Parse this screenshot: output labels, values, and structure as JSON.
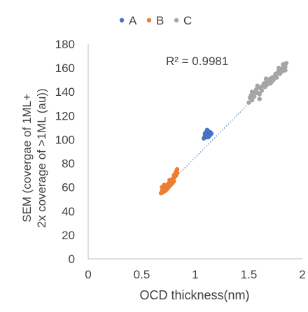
{
  "chart_data": {
    "type": "scatter",
    "title": "",
    "xlabel": "OCD thickness(nm)",
    "ylabel_line1": "SEM (covergae of 1ML+",
    "ylabel_line2": "2x coverage of >1ML (au))",
    "xlim": [
      0,
      2
    ],
    "ylim": [
      0,
      180
    ],
    "x_ticks": [
      0,
      0.5,
      1,
      1.5,
      2
    ],
    "x_tick_labels": [
      "0",
      "0.5",
      "1",
      "1.5",
      "2"
    ],
    "y_ticks": [
      0,
      20,
      40,
      60,
      80,
      100,
      120,
      140,
      160,
      180
    ],
    "y_tick_labels": [
      "0",
      "20",
      "40",
      "60",
      "80",
      "100",
      "120",
      "140",
      "160",
      "180"
    ],
    "grid": false,
    "legend_position": "top-center",
    "annotation": "R² = 0.9981",
    "trendline": {
      "style": "dotted",
      "color": "#4472c4",
      "from": [
        0.68,
        56
      ],
      "to": [
        1.85,
        162
      ]
    },
    "series": [
      {
        "name": "A",
        "color": "#4472c4",
        "points": [
          [
            1.08,
            101
          ],
          [
            1.09,
            103
          ],
          [
            1.1,
            104
          ],
          [
            1.1,
            106
          ],
          [
            1.11,
            102
          ],
          [
            1.12,
            105
          ],
          [
            1.12,
            107
          ],
          [
            1.13,
            104
          ],
          [
            1.14,
            106
          ],
          [
            1.15,
            105
          ],
          [
            1.11,
            108
          ],
          [
            1.13,
            103
          ],
          [
            1.09,
            105
          ],
          [
            1.14,
            104
          ],
          [
            1.12,
            102
          ]
        ]
      },
      {
        "name": "B",
        "color": "#ed7d31",
        "points": [
          [
            0.68,
            55
          ],
          [
            0.69,
            57
          ],
          [
            0.7,
            56
          ],
          [
            0.7,
            59
          ],
          [
            0.71,
            58
          ],
          [
            0.72,
            61
          ],
          [
            0.72,
            57
          ],
          [
            0.73,
            60
          ],
          [
            0.74,
            62
          ],
          [
            0.74,
            59
          ],
          [
            0.75,
            63
          ],
          [
            0.76,
            61
          ],
          [
            0.76,
            64
          ],
          [
            0.77,
            65
          ],
          [
            0.77,
            62
          ],
          [
            0.78,
            66
          ],
          [
            0.79,
            64
          ],
          [
            0.79,
            67
          ],
          [
            0.8,
            68
          ],
          [
            0.8,
            65
          ],
          [
            0.81,
            69
          ],
          [
            0.81,
            71
          ],
          [
            0.82,
            70
          ],
          [
            0.82,
            73
          ],
          [
            0.83,
            75
          ],
          [
            0.71,
            62
          ],
          [
            0.73,
            58
          ],
          [
            0.75,
            60
          ],
          [
            0.78,
            63
          ],
          [
            0.8,
            70
          ],
          [
            0.69,
            60
          ],
          [
            0.76,
            66
          ],
          [
            0.83,
            72
          ]
        ]
      },
      {
        "name": "C",
        "color": "#a5a5a5",
        "points": [
          [
            1.5,
            131
          ],
          [
            1.51,
            135
          ],
          [
            1.52,
            137
          ],
          [
            1.53,
            133
          ],
          [
            1.54,
            138
          ],
          [
            1.55,
            136
          ],
          [
            1.56,
            140
          ],
          [
            1.57,
            142
          ],
          [
            1.58,
            139
          ],
          [
            1.59,
            144
          ],
          [
            1.6,
            138
          ],
          [
            1.61,
            143
          ],
          [
            1.62,
            141
          ],
          [
            1.63,
            145
          ],
          [
            1.64,
            147
          ],
          [
            1.65,
            144
          ],
          [
            1.66,
            148
          ],
          [
            1.67,
            146
          ],
          [
            1.68,
            150
          ],
          [
            1.69,
            149
          ],
          [
            1.7,
            151
          ],
          [
            1.71,
            148
          ],
          [
            1.72,
            152
          ],
          [
            1.73,
            150
          ],
          [
            1.74,
            153
          ],
          [
            1.75,
            155
          ],
          [
            1.76,
            152
          ],
          [
            1.77,
            156
          ],
          [
            1.78,
            158
          ],
          [
            1.79,
            155
          ],
          [
            1.8,
            159
          ],
          [
            1.81,
            157
          ],
          [
            1.82,
            160
          ],
          [
            1.83,
            162
          ],
          [
            1.84,
            161
          ],
          [
            1.85,
            164
          ],
          [
            1.84,
            158
          ],
          [
            1.82,
            163
          ],
          [
            1.78,
            160
          ],
          [
            1.7,
            147
          ],
          [
            1.66,
            151
          ],
          [
            1.58,
            145
          ],
          [
            1.53,
            140
          ],
          [
            1.6,
            134
          ]
        ]
      }
    ]
  }
}
